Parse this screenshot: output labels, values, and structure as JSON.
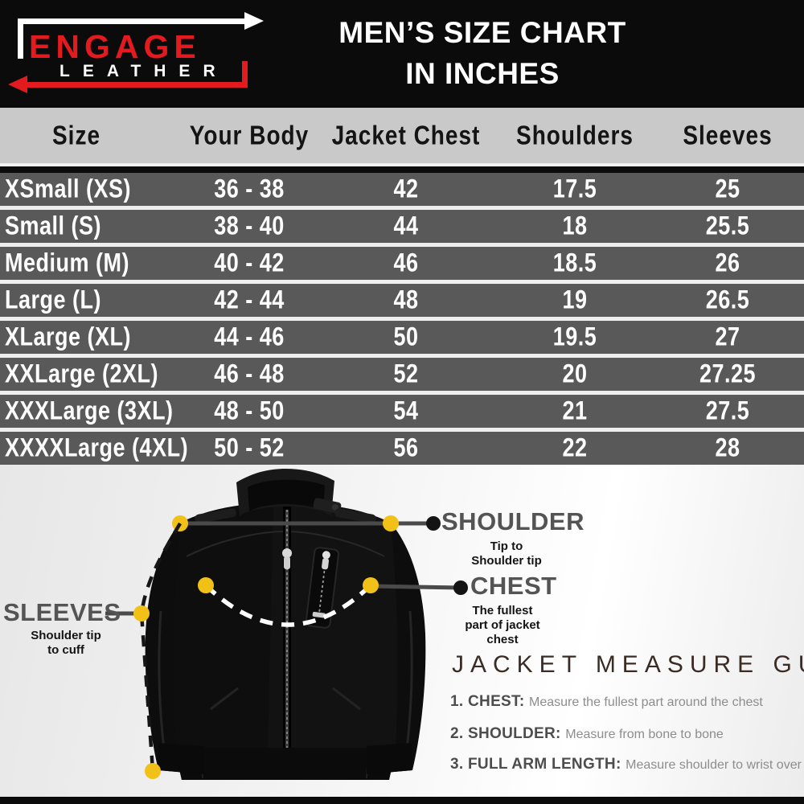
{
  "brand": {
    "name_top": "ENGAGE",
    "name_bottom": "LEATHER"
  },
  "header": {
    "title_line1": "MEN’S SIZE CHART",
    "title_line2": "IN INCHES"
  },
  "table": {
    "columns": [
      "Size",
      "Your Body",
      "Jacket Chest",
      "Shoulders",
      "Sleeves"
    ],
    "rows": [
      {
        "size": "XSmall (XS)",
        "body": "36 - 38",
        "chest": "42",
        "shoulders": "17.5",
        "sleeves": "25"
      },
      {
        "size": "Small (S)",
        "body": "38 - 40",
        "chest": "44",
        "shoulders": "18",
        "sleeves": "25.5"
      },
      {
        "size": "Medium (M)",
        "body": "40 - 42",
        "chest": "46",
        "shoulders": "18.5",
        "sleeves": "26"
      },
      {
        "size": "Large (L)",
        "body": "42 - 44",
        "chest": "48",
        "shoulders": "19",
        "sleeves": "26.5"
      },
      {
        "size": "XLarge (XL)",
        "body": "44 - 46",
        "chest": "50",
        "shoulders": "19.5",
        "sleeves": "27"
      },
      {
        "size": "XXLarge (2XL)",
        "body": "46 - 48",
        "chest": "52",
        "shoulders": "20",
        "sleeves": "27.25"
      },
      {
        "size": "XXXLarge (3XL)",
        "body": "48 - 50",
        "chest": "54",
        "shoulders": "21",
        "sleeves": "27.5"
      },
      {
        "size": "XXXXLarge (4XL)",
        "body": "50 - 52",
        "chest": "56",
        "shoulders": "22",
        "sleeves": "28"
      }
    ]
  },
  "diagram": {
    "shoulder": {
      "label": "SHOULDER",
      "desc_line1": "Tip to",
      "desc_line2": "Shoulder tip"
    },
    "chest": {
      "label": "CHEST",
      "desc_line1": "The fullest",
      "desc_line2": "part of jacket",
      "desc_line3": "chest"
    },
    "sleeves": {
      "label": "SLEEVES",
      "desc_line1": "Shoulder tip",
      "desc_line2": "to cuff"
    }
  },
  "guide": {
    "title": "JACKET MEASURE GUIDE",
    "items": [
      {
        "label": "1. CHEST:",
        "text": "Measure the fullest part around the chest"
      },
      {
        "label": "2. SHOULDER:",
        "text": "Measure from bone to bone"
      },
      {
        "label": "3. FULL ARM LENGTH:",
        "text": "Measure shoulder to wrist over elbow"
      }
    ]
  },
  "colors": {
    "accent_red": "#e31b1e",
    "banner_black": "#0b0b0b",
    "header_gray": "#c9c9c9",
    "row_gray": "#595959",
    "dot_yellow": "#f2c118",
    "line_gray": "#4a4a4a",
    "guide_title_brown": "#3a2c24"
  }
}
